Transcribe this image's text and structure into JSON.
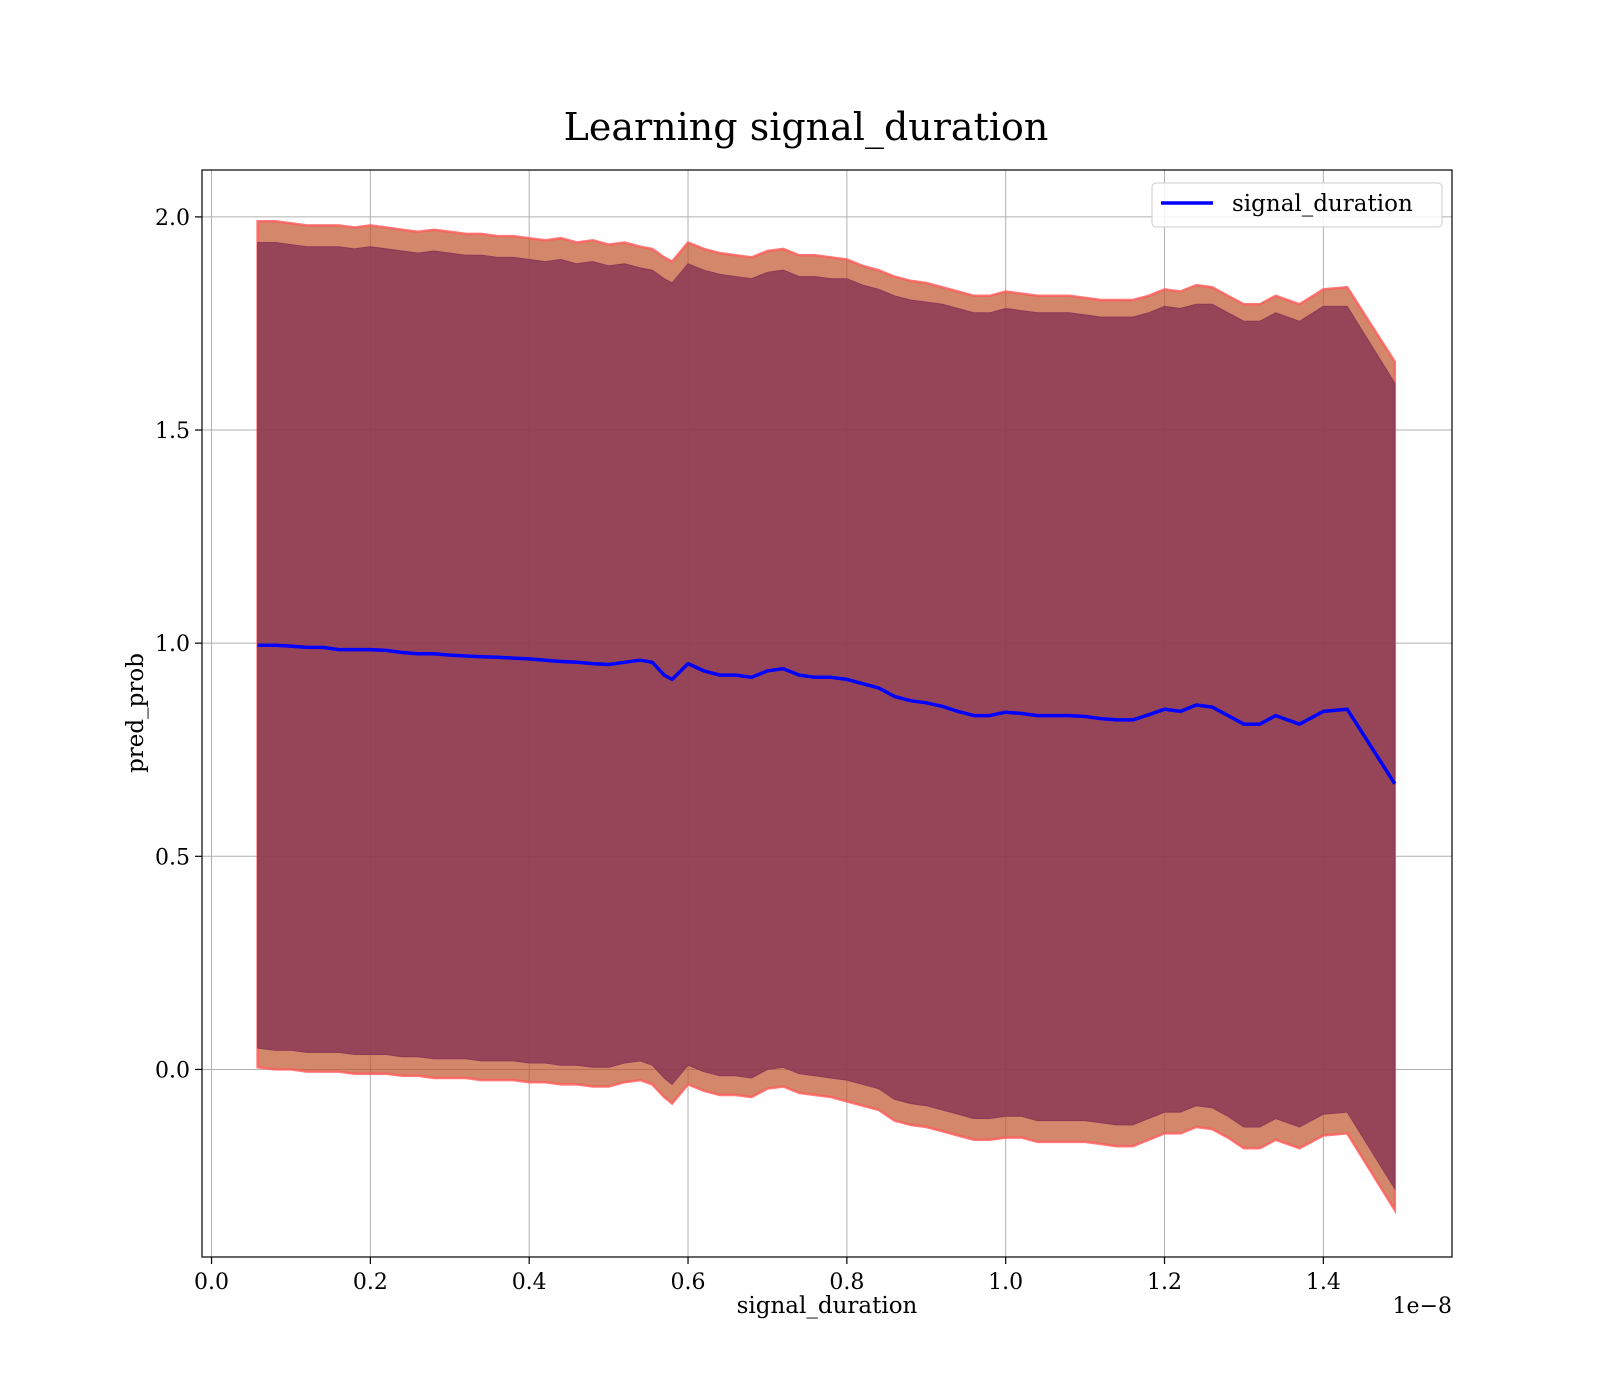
{
  "chart_data": {
    "type": "line",
    "title": "Learning signal_duration",
    "xlabel": "signal_duration",
    "ylabel": "pred_prob",
    "x_offset_text": "1e−8",
    "xlim": [
      -0.012,
      1.562
    ],
    "ylim": [
      -0.44,
      2.11
    ],
    "x_ticks": [
      0.0,
      0.2,
      0.4,
      0.6,
      0.8,
      1.0,
      1.2,
      1.4
    ],
    "x_tick_labels": [
      "0.0",
      "0.2",
      "0.4",
      "0.6",
      "0.8",
      "1.0",
      "1.2",
      "1.4"
    ],
    "y_ticks": [
      0.0,
      0.5,
      1.0,
      1.5,
      2.0
    ],
    "y_tick_labels": [
      "0.0",
      "0.5",
      "1.0",
      "1.5",
      "2.0"
    ],
    "grid": true,
    "legend_position": "top-right",
    "colors": {
      "line": "#0000ff",
      "inner_band": "#8b3a56",
      "outer_band": "#c0542c",
      "band_edge": "#ff5a5a",
      "grid": "#b0b0b0"
    },
    "series": [
      {
        "name": "signal_duration",
        "x": [
          0.058,
          0.08,
          0.1,
          0.12,
          0.14,
          0.16,
          0.18,
          0.2,
          0.22,
          0.24,
          0.26,
          0.28,
          0.3,
          0.32,
          0.34,
          0.36,
          0.38,
          0.4,
          0.42,
          0.44,
          0.46,
          0.48,
          0.5,
          0.52,
          0.54,
          0.555,
          0.57,
          0.58,
          0.6,
          0.62,
          0.64,
          0.66,
          0.68,
          0.7,
          0.72,
          0.74,
          0.76,
          0.78,
          0.8,
          0.82,
          0.84,
          0.86,
          0.88,
          0.9,
          0.92,
          0.94,
          0.96,
          0.98,
          1.0,
          1.02,
          1.04,
          1.06,
          1.08,
          1.1,
          1.12,
          1.14,
          1.16,
          1.18,
          1.2,
          1.22,
          1.24,
          1.26,
          1.28,
          1.3,
          1.32,
          1.34,
          1.37,
          1.4,
          1.43,
          1.49
        ],
        "y": [
          0.995,
          0.995,
          0.993,
          0.99,
          0.99,
          0.985,
          0.985,
          0.985,
          0.983,
          0.978,
          0.975,
          0.975,
          0.972,
          0.97,
          0.968,
          0.967,
          0.965,
          0.963,
          0.96,
          0.957,
          0.955,
          0.952,
          0.95,
          0.955,
          0.96,
          0.955,
          0.925,
          0.915,
          0.952,
          0.935,
          0.925,
          0.925,
          0.92,
          0.935,
          0.94,
          0.925,
          0.92,
          0.92,
          0.915,
          0.905,
          0.895,
          0.875,
          0.865,
          0.86,
          0.852,
          0.84,
          0.83,
          0.83,
          0.838,
          0.835,
          0.83,
          0.83,
          0.83,
          0.828,
          0.823,
          0.82,
          0.82,
          0.832,
          0.845,
          0.84,
          0.855,
          0.85,
          0.83,
          0.81,
          0.81,
          0.83,
          0.81,
          0.84,
          0.845,
          0.67
        ],
        "inner_band": {
          "upper": [
            1.94,
            1.94,
            1.935,
            1.93,
            1.93,
            1.93,
            1.925,
            1.93,
            1.925,
            1.92,
            1.915,
            1.92,
            1.915,
            1.91,
            1.91,
            1.905,
            1.905,
            1.9,
            1.895,
            1.9,
            1.89,
            1.895,
            1.885,
            1.89,
            1.88,
            1.875,
            1.855,
            1.845,
            1.89,
            1.875,
            1.865,
            1.86,
            1.855,
            1.87,
            1.875,
            1.86,
            1.86,
            1.855,
            1.855,
            1.84,
            1.83,
            1.815,
            1.805,
            1.8,
            1.795,
            1.785,
            1.775,
            1.775,
            1.785,
            1.78,
            1.775,
            1.775,
            1.775,
            1.77,
            1.765,
            1.765,
            1.765,
            1.775,
            1.79,
            1.785,
            1.795,
            1.795,
            1.775,
            1.755,
            1.755,
            1.775,
            1.755,
            1.79,
            1.79,
            1.61
          ],
          "lower": [
            0.05,
            0.045,
            0.045,
            0.04,
            0.04,
            0.04,
            0.035,
            0.035,
            0.035,
            0.03,
            0.03,
            0.025,
            0.025,
            0.025,
            0.02,
            0.02,
            0.02,
            0.015,
            0.015,
            0.01,
            0.01,
            0.005,
            0.005,
            0.015,
            0.02,
            0.01,
            -0.02,
            -0.035,
            0.01,
            -0.005,
            -0.015,
            -0.015,
            -0.02,
            0.0,
            0.005,
            -0.01,
            -0.015,
            -0.02,
            -0.025,
            -0.035,
            -0.045,
            -0.07,
            -0.08,
            -0.085,
            -0.095,
            -0.105,
            -0.115,
            -0.115,
            -0.11,
            -0.11,
            -0.12,
            -0.12,
            -0.12,
            -0.12,
            -0.125,
            -0.13,
            -0.13,
            -0.115,
            -0.1,
            -0.1,
            -0.085,
            -0.09,
            -0.11,
            -0.135,
            -0.135,
            -0.115,
            -0.135,
            -0.105,
            -0.1,
            -0.28
          ]
        },
        "outer_band": {
          "upper": [
            1.99,
            1.99,
            1.985,
            1.98,
            1.98,
            1.98,
            1.975,
            1.98,
            1.975,
            1.97,
            1.965,
            1.97,
            1.965,
            1.96,
            1.96,
            1.955,
            1.955,
            1.95,
            1.945,
            1.95,
            1.94,
            1.945,
            1.935,
            1.94,
            1.93,
            1.925,
            1.905,
            1.895,
            1.94,
            1.925,
            1.915,
            1.91,
            1.905,
            1.92,
            1.925,
            1.91,
            1.91,
            1.905,
            1.9,
            1.885,
            1.875,
            1.86,
            1.85,
            1.845,
            1.835,
            1.825,
            1.815,
            1.815,
            1.825,
            1.82,
            1.815,
            1.815,
            1.815,
            1.81,
            1.805,
            1.805,
            1.805,
            1.815,
            1.83,
            1.825,
            1.84,
            1.835,
            1.815,
            1.795,
            1.795,
            1.815,
            1.795,
            1.83,
            1.835,
            1.66
          ],
          "lower": [
            0.005,
            0.0,
            0.0,
            -0.005,
            -0.005,
            -0.005,
            -0.01,
            -0.01,
            -0.01,
            -0.015,
            -0.015,
            -0.02,
            -0.02,
            -0.02,
            -0.025,
            -0.025,
            -0.025,
            -0.03,
            -0.03,
            -0.035,
            -0.035,
            -0.04,
            -0.04,
            -0.03,
            -0.025,
            -0.035,
            -0.065,
            -0.08,
            -0.035,
            -0.05,
            -0.06,
            -0.06,
            -0.065,
            -0.045,
            -0.04,
            -0.055,
            -0.06,
            -0.065,
            -0.075,
            -0.085,
            -0.095,
            -0.12,
            -0.13,
            -0.135,
            -0.145,
            -0.155,
            -0.165,
            -0.165,
            -0.16,
            -0.16,
            -0.17,
            -0.17,
            -0.17,
            -0.17,
            -0.175,
            -0.18,
            -0.18,
            -0.165,
            -0.15,
            -0.15,
            -0.135,
            -0.14,
            -0.16,
            -0.185,
            -0.185,
            -0.165,
            -0.185,
            -0.155,
            -0.15,
            -0.33
          ]
        }
      }
    ]
  }
}
